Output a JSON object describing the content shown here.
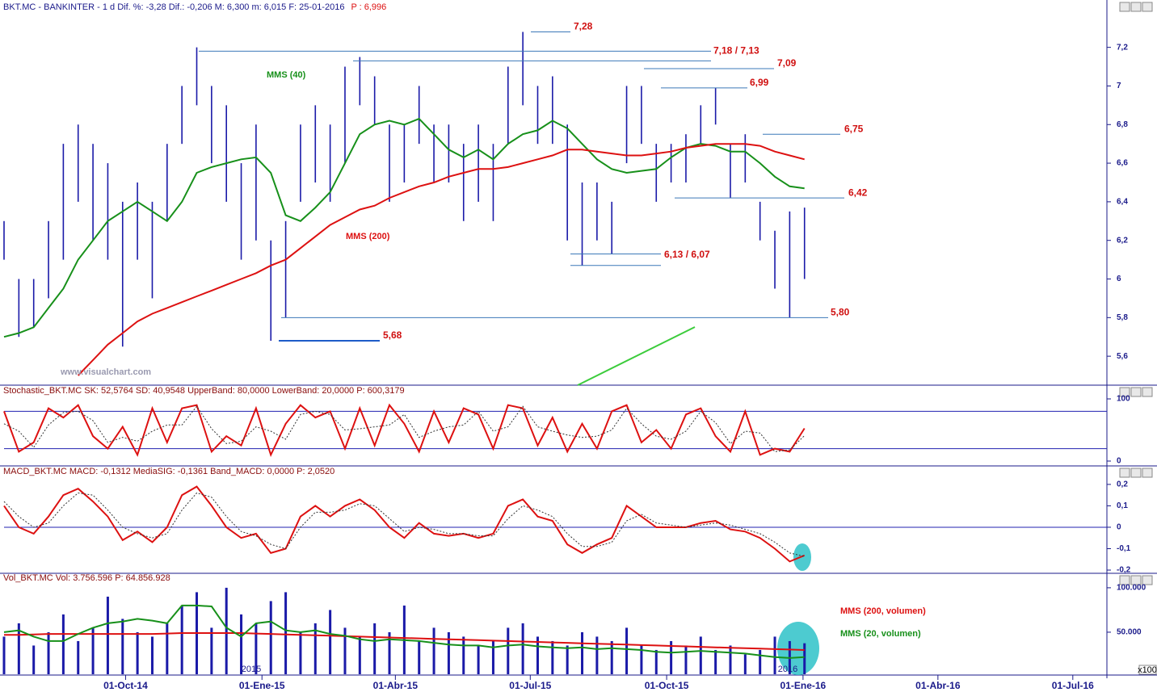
{
  "chart_data": [
    {
      "type": "hilo",
      "title": "BKT.MC - BANKINTER - 1 d Dif. %: -3,28 Dif.: -0,206 M: 6,300 m: 6,015 F: 25-01-2016",
      "title_extra": "P : 6,996",
      "watermark": "www.visualchart.com",
      "color": "#1a1aa8",
      "x": [
        0,
        10,
        20,
        30,
        40,
        50,
        60,
        70,
        80,
        90,
        100,
        110,
        120,
        130,
        140,
        150,
        160,
        170,
        180,
        190,
        200,
        210,
        220,
        230,
        240,
        250,
        260,
        270,
        280,
        290,
        300,
        310,
        320,
        330,
        340,
        350,
        360,
        370,
        380,
        390,
        400,
        410,
        420,
        430,
        440,
        450,
        460,
        470,
        480,
        490,
        500,
        510,
        520,
        530,
        540
      ],
      "high": [
        6.3,
        6.0,
        6.0,
        6.3,
        6.7,
        6.8,
        6.7,
        6.6,
        6.4,
        6.5,
        6.4,
        6.7,
        7.0,
        7.2,
        7.0,
        6.9,
        6.6,
        6.8,
        6.2,
        6.3,
        6.8,
        6.9,
        6.8,
        7.1,
        7.15,
        7.05,
        6.8,
        6.8,
        7.0,
        6.8,
        6.8,
        6.7,
        6.8,
        6.7,
        7.1,
        7.28,
        7.0,
        7.05,
        6.8,
        6.5,
        6.5,
        6.4,
        7.0,
        7.0,
        6.7,
        6.7,
        6.75,
        6.9,
        6.99,
        6.7,
        6.75,
        6.4,
        6.25,
        6.35,
        6.37
      ],
      "low": [
        6.1,
        5.7,
        5.75,
        5.9,
        6.1,
        6.4,
        6.2,
        6.1,
        5.65,
        6.1,
        5.9,
        6.3,
        6.7,
        6.9,
        6.6,
        6.4,
        6.1,
        6.2,
        5.68,
        5.8,
        6.4,
        6.5,
        6.4,
        6.6,
        6.9,
        6.8,
        6.4,
        6.5,
        6.7,
        6.5,
        6.5,
        6.3,
        6.4,
        6.3,
        6.7,
        6.9,
        6.7,
        6.7,
        6.2,
        6.07,
        6.2,
        6.13,
        6.6,
        6.7,
        6.4,
        6.5,
        6.5,
        6.7,
        6.8,
        6.42,
        6.5,
        6.2,
        5.95,
        5.8,
        6.0
      ],
      "series": [
        {
          "name": "MMS (40)",
          "color": "#17901a",
          "values": [
            5.7,
            5.72,
            5.75,
            5.85,
            5.95,
            6.1,
            6.2,
            6.3,
            6.35,
            6.4,
            6.35,
            6.3,
            6.4,
            6.55,
            6.58,
            6.6,
            6.62,
            6.63,
            6.55,
            6.33,
            6.3,
            6.37,
            6.45,
            6.6,
            6.75,
            6.8,
            6.82,
            6.8,
            6.83,
            6.75,
            6.67,
            6.63,
            6.67,
            6.62,
            6.7,
            6.75,
            6.77,
            6.82,
            6.78,
            6.7,
            6.62,
            6.57,
            6.55,
            6.56,
            6.57,
            6.63,
            6.68,
            6.7,
            6.69,
            6.66,
            6.66,
            6.6,
            6.53,
            6.48,
            6.47
          ]
        },
        {
          "name": "MMS (200)",
          "color": "#dd1111",
          "values": [
            null,
            null,
            null,
            null,
            null,
            5.5,
            5.58,
            5.66,
            5.72,
            5.78,
            5.82,
            5.85,
            5.88,
            5.91,
            5.94,
            5.97,
            6.0,
            6.03,
            6.07,
            6.1,
            6.16,
            6.22,
            6.28,
            6.32,
            6.36,
            6.38,
            6.42,
            6.45,
            6.48,
            6.5,
            6.53,
            6.55,
            6.57,
            6.57,
            6.58,
            6.6,
            6.62,
            6.64,
            6.67,
            6.67,
            6.66,
            6.65,
            6.64,
            6.64,
            6.65,
            6.66,
            6.68,
            6.69,
            6.7,
            6.7,
            6.7,
            6.69,
            6.66,
            6.64,
            6.62
          ]
        }
      ],
      "annotations": [
        {
          "label": "7,28",
          "levels": [
            7.28
          ]
        },
        {
          "label": "7,18 / 7,13",
          "levels": [
            7.18,
            7.13
          ]
        },
        {
          "label": "7,09",
          "levels": [
            7.09
          ]
        },
        {
          "label": "6,99",
          "levels": [
            6.99
          ]
        },
        {
          "label": "6,75",
          "levels": [
            6.75
          ]
        },
        {
          "label": "6,42",
          "levels": [
            6.42
          ]
        },
        {
          "label": "6,13 / 6,07",
          "levels": [
            6.13,
            6.07
          ]
        },
        {
          "label": "5,80",
          "levels": [
            5.8
          ]
        },
        {
          "label": "5,68",
          "levels": [
            5.68
          ]
        }
      ],
      "xlim": [
        0,
        744
      ],
      "ylim": [
        5.45,
        7.37
      ],
      "yticks": [
        {
          "value": 5.6,
          "label": "5,6"
        },
        {
          "value": 5.8,
          "label": "5,8"
        },
        6,
        {
          "value": 6.2,
          "label": "6,2"
        },
        {
          "value": 6.4,
          "label": "6,4"
        },
        {
          "value": 6.6,
          "label": "6,6"
        },
        {
          "value": 6.8,
          "label": "6,8"
        },
        7,
        {
          "value": 7.2,
          "label": "7,2"
        }
      ]
    },
    {
      "type": "line",
      "title": "Stochastic_BKT.MC SK: 52,5764 SD: 40,9548 UpperBand: 80,0000 LowerBand: 20,0000 P: 600,3179",
      "x": [
        0,
        10,
        20,
        30,
        40,
        50,
        60,
        70,
        80,
        90,
        100,
        110,
        120,
        130,
        140,
        150,
        160,
        170,
        180,
        190,
        200,
        210,
        220,
        230,
        240,
        250,
        260,
        270,
        280,
        290,
        300,
        310,
        320,
        330,
        340,
        350,
        360,
        370,
        380,
        390,
        400,
        410,
        420,
        430,
        440,
        450,
        460,
        470,
        480,
        490,
        500,
        510,
        520,
        530,
        540
      ],
      "series": [
        {
          "color": "#dd1111",
          "values": [
            80,
            15,
            30,
            85,
            70,
            90,
            40,
            20,
            55,
            10,
            85,
            30,
            85,
            90,
            15,
            40,
            25,
            85,
            10,
            60,
            90,
            70,
            80,
            20,
            85,
            25,
            90,
            60,
            15,
            80,
            30,
            85,
            75,
            20,
            90,
            85,
            25,
            70,
            15,
            60,
            20,
            80,
            90,
            30,
            50,
            20,
            75,
            85,
            40,
            15,
            80,
            10,
            20,
            15,
            52.58
          ]
        },
        {
          "color": "#333333",
          "dashed": true,
          "values": [
            60,
            48,
            22,
            58,
            78,
            80,
            65,
            30,
            38,
            32,
            48,
            58,
            58,
            88,
            52,
            28,
            32,
            55,
            48,
            35,
            75,
            80,
            75,
            50,
            52,
            55,
            58,
            75,
            38,
            48,
            55,
            58,
            80,
            48,
            55,
            88,
            55,
            48,
            42,
            38,
            40,
            50,
            85,
            60,
            40,
            35,
            48,
            80,
            62,
            28,
            48,
            45,
            15,
            18,
            40.95
          ]
        }
      ],
      "bands": [
        80,
        20
      ],
      "xlim": [
        0,
        744
      ],
      "ylim": [
        -7.8,
        105.2
      ],
      "yticks": [
        0,
        100
      ]
    },
    {
      "type": "line",
      "title": "MACD_BKT.MC MACD: -0,1312 MediaSIG: -0,1361 Band_MACD: 0,0000 P: 2,0520",
      "x": [
        0,
        10,
        20,
        30,
        40,
        50,
        60,
        70,
        80,
        90,
        100,
        110,
        120,
        130,
        140,
        150,
        160,
        170,
        180,
        190,
        200,
        210,
        220,
        230,
        240,
        250,
        260,
        270,
        280,
        290,
        300,
        310,
        320,
        330,
        340,
        350,
        360,
        370,
        380,
        390,
        400,
        410,
        420,
        430,
        440,
        450,
        460,
        470,
        480,
        490,
        500,
        510,
        520,
        530,
        540
      ],
      "series": [
        {
          "color": "#dd1111",
          "values": [
            0.1,
            0,
            -0.03,
            0.05,
            0.15,
            0.18,
            0.12,
            0.05,
            -0.06,
            -0.02,
            -0.07,
            0,
            0.15,
            0.19,
            0.1,
            0,
            -0.05,
            -0.03,
            -0.12,
            -0.1,
            0.05,
            0.1,
            0.05,
            0.1,
            0.13,
            0.08,
            0,
            -0.05,
            0.02,
            -0.03,
            -0.04,
            -0.03,
            -0.05,
            -0.03,
            0.1,
            0.13,
            0.05,
            0.03,
            -0.08,
            -0.12,
            -0.08,
            -0.05,
            0.1,
            0.05,
            0,
            0,
            0,
            0.02,
            0.03,
            -0.01,
            -0.02,
            -0.05,
            -0.1,
            -0.16,
            -0.1312
          ]
        },
        {
          "color": "#333333",
          "dashed": true,
          "values": [
            0.12,
            0.05,
            0,
            0.02,
            0.1,
            0.16,
            0.15,
            0.08,
            0,
            -0.03,
            -0.05,
            -0.03,
            0.08,
            0.16,
            0.14,
            0.05,
            -0.02,
            -0.04,
            -0.08,
            -0.1,
            0,
            0.07,
            0.07,
            0.08,
            0.11,
            0.1,
            0.04,
            -0.02,
            0,
            -0.01,
            -0.03,
            -0.03,
            -0.04,
            -0.04,
            0.04,
            0.1,
            0.08,
            0.05,
            -0.03,
            -0.09,
            -0.09,
            -0.07,
            0.03,
            0.06,
            0.02,
            0.01,
            0,
            0.01,
            0.02,
            0.01,
            -0.01,
            -0.03,
            -0.07,
            -0.12,
            -0.1361
          ]
        }
      ],
      "bands": [
        0
      ],
      "xlim": [
        0,
        744
      ],
      "ylim": [
        -0.215,
        0.226
      ],
      "yticks": [
        {
          "value": 0.2,
          "label": "0,2"
        },
        {
          "value": 0.1,
          "label": "0,1"
        },
        0,
        {
          "value": -0.1,
          "label": "-0,1"
        },
        {
          "value": -0.2,
          "label": "-0,2"
        }
      ]
    },
    {
      "type": "bar",
      "title": "Vol_BKT.MC Vol: 3.756.596 P: 64.856.928",
      "unit_label": "x100",
      "year_labels": [
        "2015",
        "2016"
      ],
      "color": "#1a1aa8",
      "x": [
        0,
        10,
        20,
        30,
        40,
        50,
        60,
        70,
        80,
        90,
        100,
        110,
        120,
        130,
        140,
        150,
        160,
        170,
        180,
        190,
        200,
        210,
        220,
        230,
        240,
        250,
        260,
        270,
        280,
        290,
        300,
        310,
        320,
        330,
        340,
        350,
        360,
        370,
        380,
        390,
        400,
        410,
        420,
        430,
        440,
        450,
        460,
        470,
        480,
        490,
        500,
        510,
        520,
        530,
        540
      ],
      "values": [
        45000,
        60000,
        35000,
        50000,
        70000,
        40000,
        55000,
        90000,
        65000,
        50000,
        45000,
        60000,
        80000,
        95000,
        55000,
        100000,
        70000,
        60000,
        85000,
        95000,
        50000,
        60000,
        75000,
        55000,
        45000,
        60000,
        50000,
        80000,
        40000,
        55000,
        50000,
        45000,
        35000,
        40000,
        55000,
        60000,
        45000,
        40000,
        35000,
        50000,
        45000,
        40000,
        55000,
        35000,
        30000,
        40000,
        35000,
        45000,
        30000,
        35000,
        25000,
        30000,
        45000,
        40000,
        37566
      ],
      "series": [
        {
          "name": "MMS (200, volumen)",
          "color": "#dd1111",
          "values": [
            47000,
            47000,
            47500,
            48000,
            48000,
            48000,
            48000,
            48000,
            48000,
            48000,
            48000,
            48500,
            49000,
            49000,
            49000,
            49000,
            49000,
            48500,
            48000,
            47500,
            47000,
            46500,
            46000,
            45500,
            45000,
            44500,
            44000,
            43500,
            43000,
            42500,
            42000,
            41500,
            41000,
            40500,
            40000,
            39500,
            39000,
            38500,
            38000,
            37500,
            37000,
            36500,
            36000,
            35500,
            35000,
            34500,
            34000,
            33500,
            33000,
            32500,
            32000,
            31500,
            31000,
            30500,
            30000
          ]
        },
        {
          "name": "MMS (20, volumen)",
          "color": "#17901a",
          "values": [
            50000,
            52000,
            45000,
            40000,
            40000,
            48000,
            55000,
            60000,
            62000,
            65000,
            63000,
            60000,
            80000,
            80000,
            79000,
            55000,
            45000,
            60000,
            62000,
            52000,
            50000,
            52000,
            48000,
            46000,
            42000,
            40000,
            42000,
            41000,
            40000,
            38000,
            36000,
            35000,
            35000,
            33000,
            35000,
            36000,
            34000,
            33000,
            32000,
            33000,
            31000,
            32000,
            31000,
            30000,
            28000,
            27000,
            28000,
            29000,
            28000,
            27000,
            26000,
            24000,
            22000,
            21000,
            22000
          ]
        }
      ],
      "xlim": [
        0,
        744
      ],
      "ylim": [
        2700,
        109000
      ],
      "yticks": [
        {
          "value": 50000,
          "label": "50.000"
        },
        {
          "value": 100000,
          "label": "100.000"
        }
      ],
      "xticks": [
        {
          "value": 82,
          "label": "01-Oct-14"
        },
        {
          "value": 174,
          "label": "01-Ene-15"
        },
        {
          "value": 264,
          "label": "01-Abr-15"
        },
        {
          "value": 355,
          "label": "01-Jul-15"
        },
        {
          "value": 447,
          "label": "01-Oct-15"
        },
        {
          "value": 539,
          "label": "01-Ene-16"
        },
        {
          "value": 630,
          "label": "01-Abr-16"
        },
        {
          "value": 721,
          "label": "01-Jul-16"
        }
      ]
    }
  ]
}
